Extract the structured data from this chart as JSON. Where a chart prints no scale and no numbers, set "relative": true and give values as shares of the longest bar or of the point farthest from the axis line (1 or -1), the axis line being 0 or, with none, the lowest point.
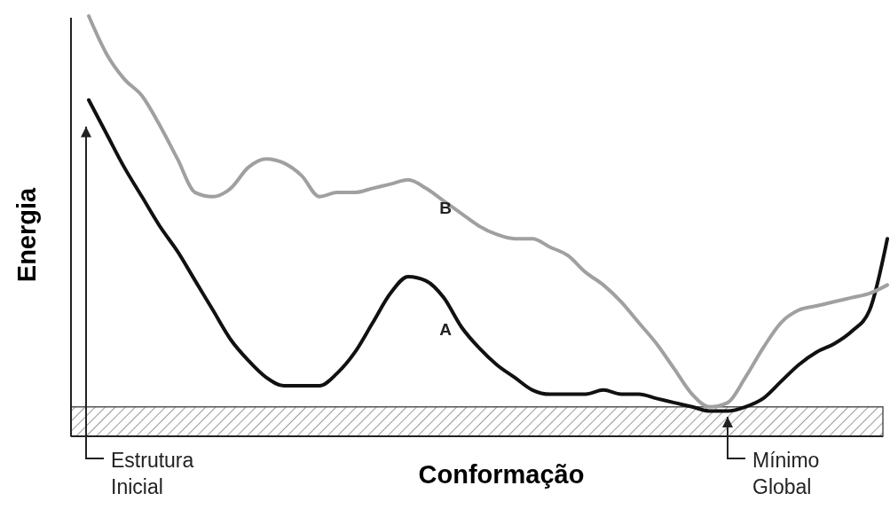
{
  "chart_data": {
    "type": "line",
    "relative": true,
    "xlabel": "Conformação",
    "ylabel": "Energia",
    "annotations": [
      "Estrutura Inicial",
      "Mínimo Global"
    ],
    "bands": [
      {
        "axis": "y",
        "from": 0,
        "to": 0.07,
        "color": "#555555"
      }
    ],
    "categories": [
      null,
      null,
      null,
      null,
      null,
      null,
      null,
      null,
      null,
      null,
      null,
      null,
      null,
      null,
      null,
      null,
      null,
      null,
      null,
      null,
      null,
      null,
      null,
      null,
      null,
      null,
      null,
      null,
      null,
      null,
      null,
      null,
      null,
      null,
      null,
      null,
      null,
      null,
      null,
      null,
      null,
      null,
      null,
      null,
      null,
      null
    ],
    "series": [
      {
        "name": "A",
        "color": "#111111",
        "values": [
          0.8,
          0.72,
          0.64,
          0.57,
          0.5,
          0.44,
          0.37,
          0.3,
          0.23,
          0.18,
          0.14,
          0.12,
          0.12,
          0.12,
          0.15,
          0.2,
          0.27,
          0.34,
          0.38,
          0.37,
          0.33,
          0.26,
          0.21,
          0.17,
          0.14,
          0.11,
          0.1,
          0.1,
          0.1,
          0.11,
          0.1,
          0.1,
          0.09,
          0.08,
          0.07,
          0.06,
          0.06,
          0.07,
          0.09,
          0.13,
          0.17,
          0.2,
          0.22,
          0.25,
          0.3,
          0.47
        ]
      },
      {
        "name": "B",
        "color": "#a0a0a0",
        "values": [
          1.0,
          0.91,
          0.85,
          0.81,
          0.74,
          0.66,
          0.58,
          0.57,
          0.59,
          0.64,
          0.66,
          0.65,
          0.62,
          0.57,
          0.58,
          0.58,
          0.59,
          0.6,
          0.61,
          0.59,
          0.56,
          0.53,
          0.5,
          0.48,
          0.47,
          0.47,
          0.45,
          0.43,
          0.39,
          0.36,
          0.32,
          0.27,
          0.22,
          0.16,
          0.1,
          0.07,
          0.08,
          0.14,
          0.21,
          0.27,
          0.3,
          0.31,
          0.32,
          0.33,
          0.34,
          0.36
        ]
      }
    ]
  }
}
